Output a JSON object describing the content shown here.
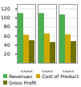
{
  "chart_data": {
    "type": "bar",
    "categories": [
      "2000",
      "2001",
      "2002"
    ],
    "series": [
      {
        "name": "Revenues",
        "color": "#4caf50",
        "values": [
          110,
          110,
          107
        ]
      },
      {
        "name": "Cost of Product",
        "color": "#ccaa00",
        "values": [
          62,
          65,
          63
        ]
      },
      {
        "name": "Gross Profit",
        "color": "#707000",
        "values": [
          50,
          46,
          48
        ]
      }
    ],
    "ylim": [
      0,
      130
    ],
    "yticks": [
      20,
      40,
      60,
      80,
      100,
      120
    ],
    "grid": true,
    "legend": "bottom"
  }
}
